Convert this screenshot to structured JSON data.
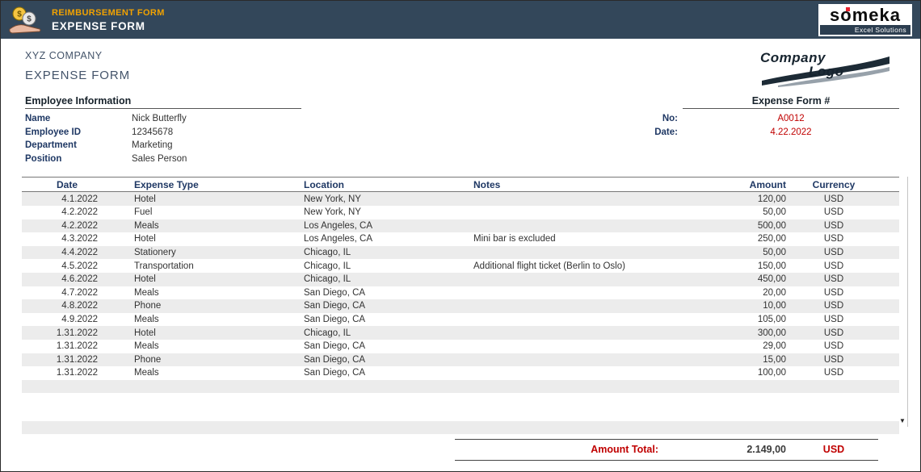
{
  "header": {
    "small_title": "REIMBURSEMENT FORM",
    "main_title": "EXPENSE FORM",
    "brand_name": "someka",
    "brand_tagline": "Excel Solutions"
  },
  "company": {
    "name": "XYZ COMPANY",
    "form_title": "EXPENSE FORM",
    "logo_line1": "Company",
    "logo_line2": "Logo"
  },
  "employee_info": {
    "section_title": "Employee Information",
    "fields": [
      {
        "label": "Name",
        "value": "Nick Butterfly"
      },
      {
        "label": "Employee ID",
        "value": "12345678"
      },
      {
        "label": "Department",
        "value": "Marketing"
      },
      {
        "label": "Position",
        "value": "Sales Person"
      }
    ]
  },
  "expense_form_meta": {
    "section_title": "Expense Form #",
    "no_label": "No:",
    "no_value": "A0012",
    "date_label": "Date:",
    "date_value": "4.22.2022"
  },
  "table": {
    "columns": [
      "Date",
      "Expense Type",
      "Location",
      "Notes",
      "Amount",
      "Currency"
    ],
    "rows": [
      [
        "4.1.2022",
        "Hotel",
        "New York, NY",
        "",
        "120,00",
        "USD"
      ],
      [
        "4.2.2022",
        "Fuel",
        "New York, NY",
        "",
        "50,00",
        "USD"
      ],
      [
        "4.2.2022",
        "Meals",
        "Los Angeles, CA",
        "",
        "500,00",
        "USD"
      ],
      [
        "4.3.2022",
        "Hotel",
        "Los Angeles, CA",
        "Mini bar is excluded",
        "250,00",
        "USD"
      ],
      [
        "4.4.2022",
        "Stationery",
        "Chicago, IL",
        "",
        "50,00",
        "USD"
      ],
      [
        "4.5.2022",
        "Transportation",
        "Chicago, IL",
        "Additional flight ticket (Berlin to Oslo)",
        "150,00",
        "USD"
      ],
      [
        "4.6.2022",
        "Hotel",
        "Chicago, IL",
        "",
        "450,00",
        "USD"
      ],
      [
        "4.7.2022",
        "Meals",
        "San Diego, CA",
        "",
        "20,00",
        "USD"
      ],
      [
        "4.8.2022",
        "Phone",
        "San Diego, CA",
        "",
        "10,00",
        "USD"
      ],
      [
        "4.9.2022",
        "Meals",
        "San Diego, CA",
        "",
        "105,00",
        "USD"
      ],
      [
        "1.31.2022",
        "Hotel",
        "Chicago, IL",
        "",
        "300,00",
        "USD"
      ],
      [
        "1.31.2022",
        "Meals",
        "San Diego, CA",
        "",
        "29,00",
        "USD"
      ],
      [
        "1.31.2022",
        "Phone",
        "San Diego, CA",
        "",
        "15,00",
        "USD"
      ],
      [
        "1.31.2022",
        "Meals",
        "San Diego, CA",
        "",
        "100,00",
        "USD"
      ]
    ]
  },
  "total": {
    "label": "Amount Total:",
    "value": "2.149,00",
    "currency": "USD"
  },
  "colors": {
    "header_bg": "#33475a",
    "accent_orange": "#f0a202",
    "navy": "#1f3864",
    "red": "#c00000",
    "stripe": "#ececec"
  }
}
